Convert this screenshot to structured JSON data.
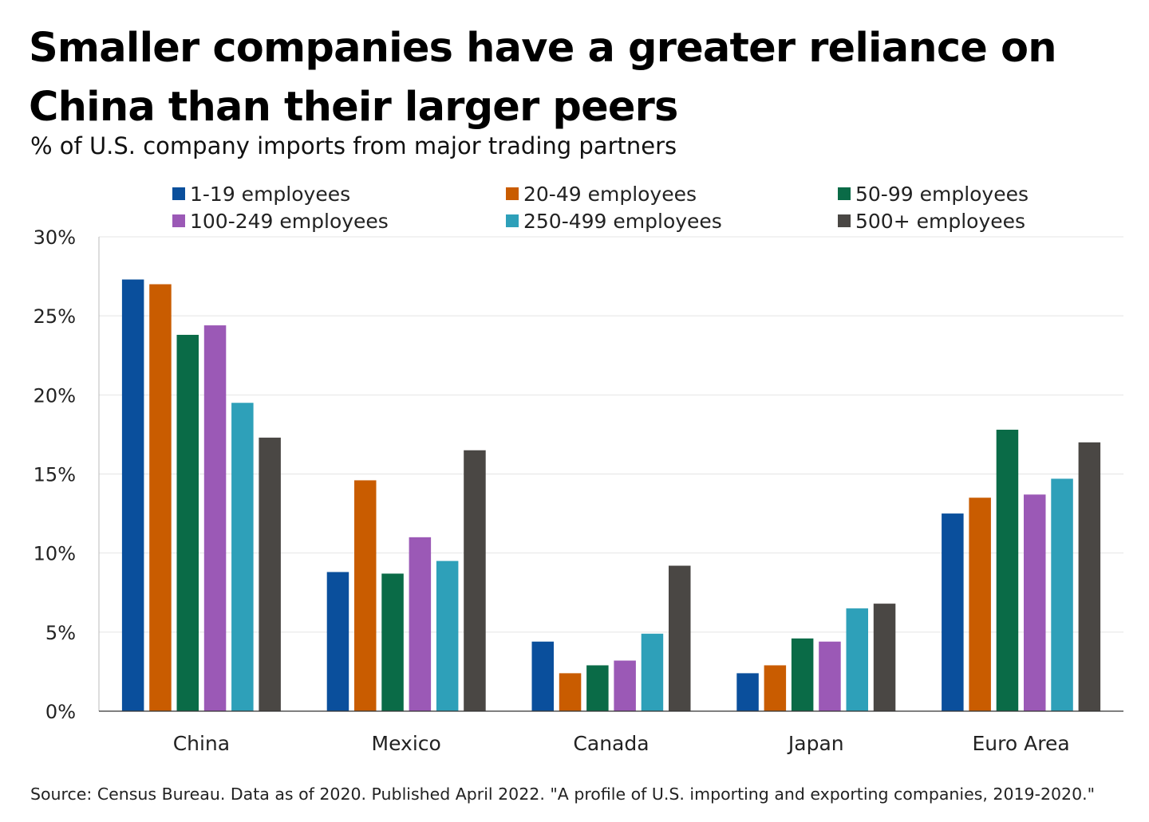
{
  "header": {
    "title": "Smaller companies have a greater reliance on China than their larger peers",
    "subtitle": "% of U.S. company imports from major trading partners"
  },
  "footer": {
    "source": "Source: Census Bureau. Data as of 2020. Published April 2022. \"A profile of U.S. importing and exporting companies, 2019-2020.\""
  },
  "chart_data": {
    "type": "bar",
    "title": "Smaller companies have a greater reliance on China than their larger peers",
    "subtitle": "% of U.S. company imports from major trading partners",
    "xlabel": "",
    "ylabel": "",
    "categories": [
      "China",
      "Mexico",
      "Canada",
      "Japan",
      "Euro Area"
    ],
    "ylim": [
      0,
      30
    ],
    "yticks": [
      0,
      5,
      10,
      15,
      20,
      25,
      30
    ],
    "ytick_labels": [
      "0%",
      "5%",
      "10%",
      "15%",
      "20%",
      "25%",
      "30%"
    ],
    "grid": true,
    "legend_position": "top",
    "series": [
      {
        "name": "1-19 employees",
        "color": "#0a4f9c",
        "values": [
          27.3,
          8.8,
          4.4,
          2.4,
          12.5
        ]
      },
      {
        "name": "20-49 employees",
        "color": "#c95c00",
        "values": [
          27.0,
          14.6,
          2.4,
          2.9,
          13.5
        ]
      },
      {
        "name": "50-99 employees",
        "color": "#0a6b47",
        "values": [
          23.8,
          8.7,
          2.9,
          4.6,
          17.8
        ]
      },
      {
        "name": "100-249 employees",
        "color": "#9b59b6",
        "values": [
          24.4,
          11.0,
          3.2,
          4.4,
          13.7
        ]
      },
      {
        "name": "250-499 employees",
        "color": "#2ea0b9",
        "values": [
          19.5,
          9.5,
          4.9,
          6.5,
          14.7
        ]
      },
      {
        "name": "500+ employees",
        "color": "#4a4744",
        "values": [
          17.3,
          16.5,
          9.2,
          6.8,
          17.0
        ]
      }
    ]
  }
}
